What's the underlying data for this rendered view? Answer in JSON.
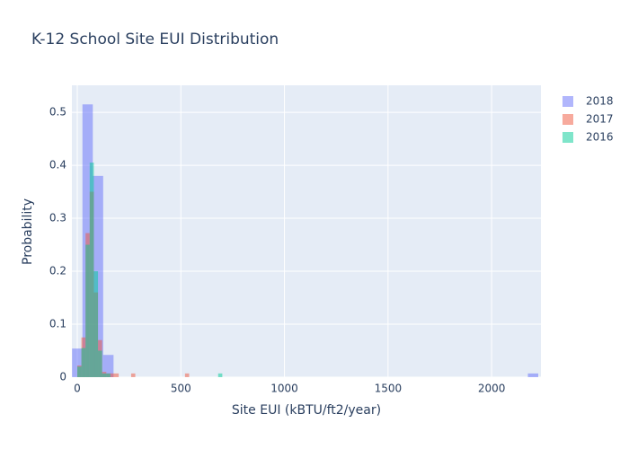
{
  "chart_data": {
    "type": "histogram",
    "title": "K-12 School Site EUI Distribution",
    "x_label": "Site EUI (kBTU/ft2/year)",
    "y_label": "Probability",
    "xlim": [
      -26,
      2238
    ],
    "ylim": [
      0,
      0.551
    ],
    "xticks": [
      0,
      500,
      1000,
      1500,
      2000
    ],
    "yticks": [
      0,
      0.1,
      0.2,
      0.3,
      0.4,
      0.5
    ],
    "grid": true,
    "legend": "top-right",
    "opacity": 0.5,
    "series": [
      {
        "name": "2018",
        "color": "#636efa",
        "bins": [
          -25,
          25,
          75,
          125,
          175,
          225,
          275,
          325,
          375,
          425,
          475,
          525,
          575,
          625,
          675,
          725,
          775,
          825,
          875,
          925,
          975,
          1025,
          1075,
          1125,
          1175,
          1225,
          1275,
          1325,
          1375,
          1425,
          1475,
          1525,
          1575,
          1625,
          1675,
          1725,
          1775,
          1825,
          1875,
          1925,
          1975,
          2025,
          2075,
          2125,
          2175,
          2225
        ],
        "values": [
          0.054,
          0.515,
          0.38,
          0.042,
          0,
          0,
          0,
          0,
          0,
          0,
          0,
          0,
          0,
          0,
          0,
          0,
          0,
          0,
          0,
          0,
          0,
          0,
          0,
          0,
          0,
          0,
          0,
          0,
          0,
          0,
          0,
          0,
          0,
          0,
          0,
          0,
          0,
          0,
          0,
          0,
          0,
          0,
          0,
          0,
          0.007
        ]
      },
      {
        "name": "2017",
        "color": "#ef553b",
        "bins": [
          0,
          20,
          40,
          60,
          80,
          100,
          120,
          140,
          160,
          180,
          200,
          220,
          240,
          260,
          280,
          300,
          320,
          340,
          360,
          380,
          400,
          420,
          440,
          460,
          480,
          500,
          520,
          540
        ],
        "values": [
          0.022,
          0.075,
          0.272,
          0.35,
          0.16,
          0.07,
          0.01,
          0.007,
          0.007,
          0.007,
          0,
          0,
          0,
          0.007,
          0,
          0,
          0,
          0,
          0,
          0,
          0,
          0,
          0,
          0,
          0,
          0,
          0.007
        ]
      },
      {
        "name": "2016",
        "color": "#00cc96",
        "bins": [
          0,
          20,
          40,
          60,
          80,
          100,
          120,
          140,
          160,
          180,
          200,
          220,
          240,
          260,
          280,
          300,
          320,
          340,
          360,
          380,
          400,
          420,
          440,
          460,
          480,
          500,
          520,
          540,
          560,
          580,
          600,
          620,
          640,
          660,
          680,
          700
        ],
        "values": [
          0.02,
          0.055,
          0.25,
          0.405,
          0.2,
          0.05,
          0.007,
          0.007,
          0,
          0,
          0,
          0,
          0,
          0,
          0,
          0,
          0,
          0,
          0,
          0,
          0,
          0,
          0,
          0,
          0,
          0,
          0,
          0,
          0,
          0,
          0,
          0,
          0,
          0,
          0.007
        ]
      }
    ]
  }
}
